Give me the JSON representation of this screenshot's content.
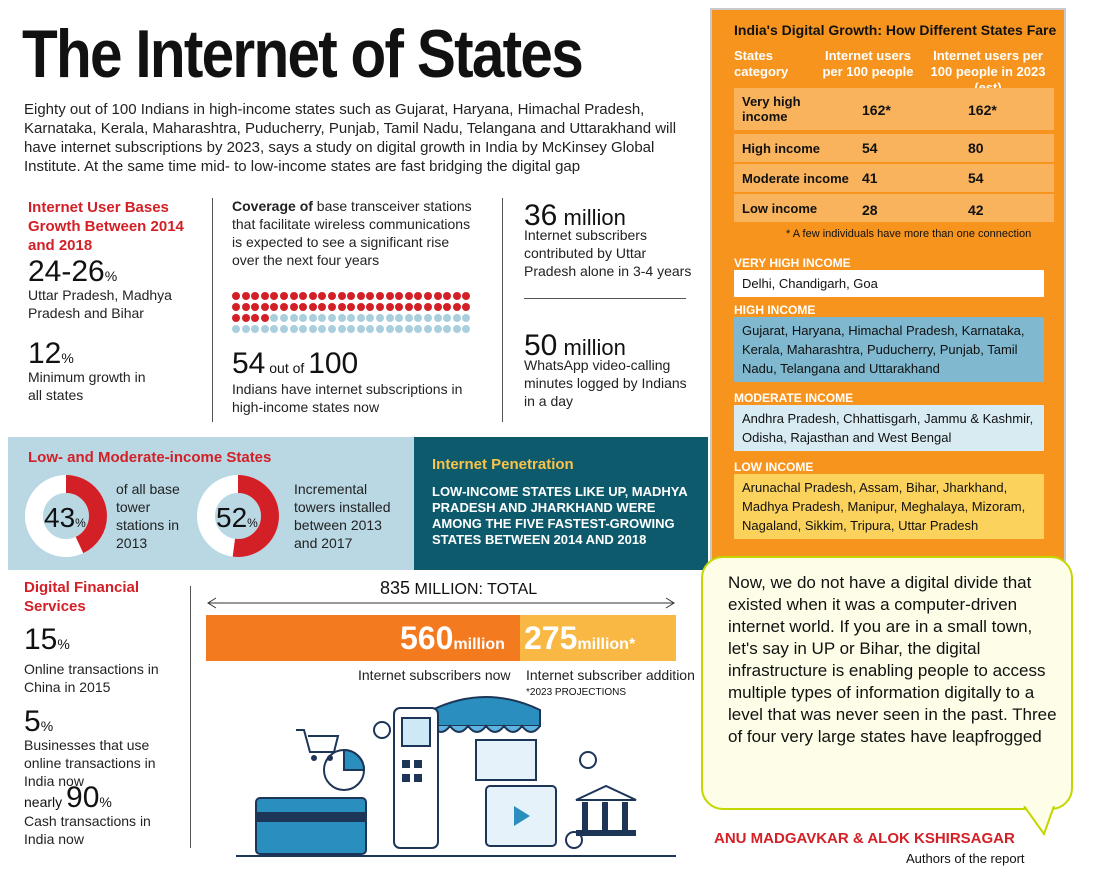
{
  "title": "The Internet of States",
  "intro": "Eighty out of 100 Indians in high-income states such as Gujarat, Haryana, Himachal Pradesh, Karnataka, Kerala, Maharashtra, Puducherry, Punjab, Tamil Nadu, Telangana and Uttarakhand will have internet subscriptions by 2023, says a study on digital growth in India by McKinsey Global Institute. At the same time mid- to low-income states are fast bridging the digital gap",
  "growth": {
    "heading": "Internet User Bases Growth Between 2014 and 2018",
    "stat1_value": "24-26",
    "stat1_unit": "%",
    "stat1_label": "Uttar Pradesh, Madhya Pradesh and Bihar",
    "stat2_value": "12",
    "stat2_unit": "%",
    "stat2_label": "Minimum growth in all states"
  },
  "coverage": {
    "bold": "Coverage of",
    "text": " base transceiver stations that facilitate wireless communications is expected to see a significant rise over the next four years",
    "dots_filled": 54,
    "dots_total": 100,
    "stat_value": "54",
    "stat_mid": " out of ",
    "stat_total": "100",
    "stat_label": "Indians have internet subscriptions in high-income states now"
  },
  "mid_stats": {
    "stat1_value": "36",
    "stat1_unit": " million",
    "stat1_label": "Internet subscribers contributed by Uttar Pradesh alone in 3-4 years",
    "stat2_value": "50",
    "stat2_unit": " million",
    "stat2_label": "WhatsApp video-calling minutes logged by Indians in a day"
  },
  "table": {
    "title": "India's Digital Growth: How Different States Fare",
    "col1": "States category",
    "col2": "Internet users per 100 people",
    "col3": "Internet users per 100 people in 2023 (est)",
    "rows": [
      {
        "category": "Very high income",
        "now": "162*",
        "est": "162*"
      },
      {
        "category": "High income",
        "now": "54",
        "est": "80"
      },
      {
        "category": "Moderate income",
        "now": "41",
        "est": "54"
      },
      {
        "category": "Low income",
        "now": "28",
        "est": "42"
      }
    ],
    "footnote": "* A few individuals have more than one connection"
  },
  "categories": [
    {
      "label": "Very high income",
      "states": "Delhi, Chandigarh, Goa",
      "color": "#ffffff"
    },
    {
      "label": "High income",
      "states": "Gujarat, Haryana, Himachal Pradesh, Karnataka, Kerala, Maharashtra, Puducherry, Punjab, Tamil Nadu, Telangana and Uttarakhand",
      "color": "#7fb8cf"
    },
    {
      "label": "Moderate income",
      "states": "Andhra Pradesh, Chhattisgarh, Jammu & Kashmir, Odisha, Rajasthan and West Bengal",
      "color": "#d8ebf2"
    },
    {
      "label": "Low income",
      "states": "Arunachal Pradesh, Assam, Bihar, Jharkhand, Madhya Pradesh, Manipur, Meghalaya, Mizoram, Nagaland, Sikkim, Tripura, Uttar Pradesh",
      "color": "#fbd25c"
    }
  ],
  "low_mod": {
    "heading": "Low- and Moderate-income States",
    "donut1_pct": 43,
    "donut1_label": "43",
    "donut1_unit": "%",
    "donut1_text": "of all base tower stations in 2013",
    "donut2_pct": 52,
    "donut2_label": "52",
    "donut2_unit": "%",
    "donut2_text": "Incremental towers installed between 2013 and 2017"
  },
  "penetration": {
    "heading": "Internet Penetration",
    "text": "LOW-INCOME STATES LIKE UP, MADHYA PRADESH AND JHARKHAND WERE AMONG THE FIVE FASTEST-GROWING STATES BETWEEN 2014 AND 2018"
  },
  "financial": {
    "heading": "Digital Financial Services",
    "stat1_value": "15",
    "stat1_unit": "%",
    "stat1_label": "Online transactions in China in 2015",
    "stat2_value": "5",
    "stat2_unit": "%",
    "stat2_label": "Businesses that use online transactions in India now",
    "stat3_prefix": "nearly ",
    "stat3_value": "90",
    "stat3_unit": "%",
    "stat3_label": "Cash transactions in India now"
  },
  "total_bar": {
    "total_value": "835",
    "total_label": " MILLION: TOTAL",
    "now_value": "560",
    "now_unit": "million",
    "now_label": "Internet subscribers now",
    "add_value": "275",
    "add_unit": "million*",
    "add_label": "Internet subscriber addition",
    "note": "*2023 PROJECTIONS",
    "now_share": 0.67
  },
  "quote": {
    "text": "Now, we do not have a digital divide that existed when it was a computer-driven internet world. If you are in a small town, let's say in UP or Bihar, the digital infrastructure is enabling people to access multiple types of information digitally to a level that was never seen in the past. Three of four very large states have leapfrogged",
    "author": "ANU MADGAVKAR & ALOK KSHIRSAGAR",
    "author_role": "Authors of the report"
  },
  "colors": {
    "accent_red": "#d32027",
    "orange": "#f7941d",
    "teal": "#0d5a6c",
    "light_blue": "#b9d8e4"
  },
  "illustration_icons": [
    "shop-awning-icon",
    "pos-terminal-icon",
    "credit-card-icon",
    "coin-icon",
    "pie-chart-icon",
    "shopping-cart-icon",
    "tablet-icon",
    "bank-icon"
  ]
}
